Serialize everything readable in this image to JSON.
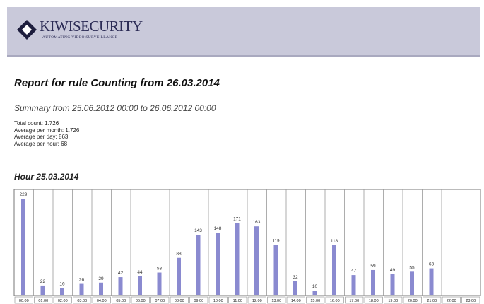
{
  "header": {
    "brand": "KIWISECURITY",
    "tagline": "AUTOMATING VIDEO SURVEILLANCE"
  },
  "report": {
    "title": "Report for rule Counting from 26.03.2014",
    "summary": "Summary from 25.06.2012 00:00 to 26.06.2012 00:00",
    "stats": [
      "Total count: 1.726",
      "Average per month: 1.726",
      "Average per day: 863",
      "Average per hour: 68"
    ]
  },
  "chart_data": {
    "type": "bar",
    "title": "Hour 25.03.2014",
    "color": "#8a8ad0",
    "categories": [
      "00:00",
      "01:00",
      "02:00",
      "03:00",
      "04:00",
      "05:00",
      "06:00",
      "07:00",
      "08:00",
      "09:00",
      "10:00",
      "11:00",
      "12:00",
      "13:00",
      "14:00",
      "15:00",
      "16:00",
      "17:00",
      "18:00",
      "19:00",
      "20:00",
      "21:00",
      "22:00",
      "23:00"
    ],
    "values": [
      229,
      22,
      16,
      26,
      29,
      42,
      44,
      53,
      88,
      143,
      148,
      171,
      163,
      119,
      32,
      10,
      118,
      47,
      59,
      49,
      55,
      63,
      null,
      null
    ]
  }
}
